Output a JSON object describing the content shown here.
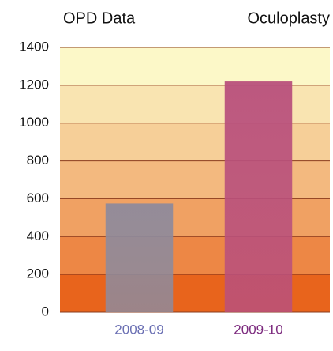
{
  "chart_data": {
    "type": "bar",
    "title": "OPD Data",
    "subtitle": "Oculoplasty",
    "categories": [
      "2008-09",
      "2009-10"
    ],
    "values": [
      575,
      1220
    ],
    "colors": [
      "#8f8a9b",
      "#b9507c"
    ],
    "label_colors": [
      "#6a6fb3",
      "#7c2a7e"
    ],
    "ylim": [
      0,
      1400
    ],
    "yticks": [
      0,
      200,
      400,
      600,
      800,
      1000,
      1200,
      1400
    ],
    "grid": true
  }
}
